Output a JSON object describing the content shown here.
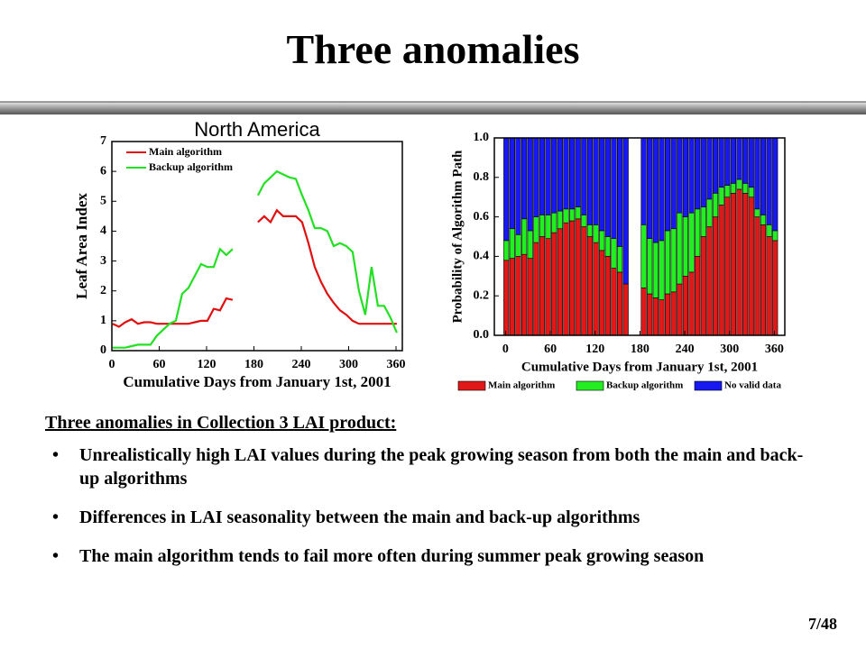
{
  "slide": {
    "title": "Three anomalies",
    "heading": "Three anomalies in Collection 3 LAI product:",
    "bullets": [
      "Unrealistically high LAI values during the peak growing season from both the main and back-up algorithms",
      "Differences in LAI seasonality between the main and back-up algorithms",
      "The main algorithm tends to fail more often during summer peak growing season"
    ],
    "page_number": "7/48"
  },
  "chart_data": [
    {
      "type": "line",
      "title": "North America",
      "xlabel": "Cumulative Days from January 1st, 2001",
      "ylabel": "Leaf Area Index",
      "x": [
        1,
        9,
        17,
        25,
        33,
        41,
        49,
        57,
        65,
        73,
        81,
        89,
        97,
        105,
        113,
        121,
        129,
        137,
        145,
        153,
        161,
        169,
        177,
        185,
        193,
        201,
        209,
        217,
        225,
        233,
        241,
        249,
        257,
        265,
        273,
        281,
        289,
        297,
        305,
        313,
        321,
        329,
        337,
        345,
        353,
        361
      ],
      "series": [
        {
          "name": "Main algorithm",
          "color": "#e01010",
          "values": [
            0.9,
            0.8,
            0.95,
            1.05,
            0.9,
            0.95,
            0.95,
            0.9,
            0.9,
            0.9,
            0.9,
            0.9,
            0.9,
            0.95,
            1.0,
            1.0,
            1.4,
            1.35,
            1.75,
            1.7,
            null,
            null,
            null,
            4.3,
            4.5,
            4.3,
            4.7,
            4.5,
            4.5,
            4.5,
            4.3,
            3.6,
            2.8,
            2.3,
            1.9,
            1.6,
            1.35,
            1.2,
            1.0,
            0.9,
            0.9,
            0.9,
            0.9,
            0.9,
            0.9,
            0.9
          ]
        },
        {
          "name": "Backup algorithm",
          "color": "#22e022",
          "values": [
            0.1,
            0.1,
            0.1,
            0.15,
            0.2,
            0.2,
            0.2,
            0.5,
            0.7,
            0.9,
            1.0,
            1.9,
            2.1,
            2.5,
            2.9,
            2.8,
            2.8,
            3.4,
            3.2,
            3.4,
            null,
            null,
            null,
            5.2,
            5.6,
            5.8,
            6.0,
            5.9,
            5.8,
            5.75,
            5.2,
            4.7,
            4.1,
            4.1,
            4.0,
            3.5,
            3.6,
            3.5,
            3.3,
            2.0,
            1.2,
            2.8,
            1.5,
            1.5,
            1.1,
            0.6
          ]
        }
      ],
      "xlim": [
        0,
        368
      ],
      "xticks": [
        0,
        60,
        120,
        180,
        240,
        300,
        360
      ],
      "ylim": [
        0,
        7
      ],
      "yticks": [
        0,
        1,
        2,
        3,
        4,
        5,
        6,
        7
      ],
      "legend": "upper left"
    },
    {
      "type": "stacked_bar",
      "xlabel": "Cumulative Days from January 1st, 2001",
      "ylabel": "Probability of Algorithm Path",
      "x": [
        1,
        9,
        17,
        25,
        33,
        41,
        49,
        57,
        65,
        73,
        81,
        89,
        97,
        105,
        113,
        121,
        129,
        137,
        145,
        153,
        161,
        169,
        177,
        185,
        193,
        201,
        209,
        217,
        225,
        233,
        241,
        249,
        257,
        265,
        273,
        281,
        289,
        297,
        305,
        313,
        321,
        329,
        337,
        345,
        353,
        361
      ],
      "series": [
        {
          "name": "Main algorithm",
          "color": "#e01818",
          "values": [
            0.38,
            0.39,
            0.4,
            0.41,
            0.39,
            0.47,
            0.5,
            0.49,
            0.52,
            0.54,
            0.57,
            0.58,
            0.59,
            0.55,
            0.5,
            0.47,
            0.43,
            0.4,
            0.34,
            0.32,
            0.26,
            null,
            null,
            0.24,
            0.21,
            0.19,
            0.18,
            0.21,
            0.22,
            0.26,
            0.3,
            0.32,
            0.4,
            0.5,
            0.55,
            0.6,
            0.66,
            0.7,
            0.72,
            0.74,
            0.72,
            0.7,
            0.6,
            0.56,
            0.5,
            0.48
          ]
        },
        {
          "name": "Backup algorithm",
          "color": "#22ee22",
          "values": [
            0.1,
            0.15,
            0.11,
            0.18,
            0.14,
            0.13,
            0.11,
            0.12,
            0.1,
            0.09,
            0.07,
            0.06,
            0.06,
            0.06,
            0.06,
            0.09,
            0.1,
            0.1,
            0.15,
            0.13,
            0,
            null,
            null,
            0.32,
            0.28,
            0.28,
            0.3,
            0.32,
            0.32,
            0.36,
            0.3,
            0.3,
            0.24,
            0.15,
            0.14,
            0.12,
            0.09,
            0.06,
            0.05,
            0.05,
            0.05,
            0.05,
            0.04,
            0.05,
            0.06,
            0.05
          ]
        },
        {
          "name": "No valid data",
          "color": "#1818f0",
          "values": [
            0.52,
            0.46,
            0.49,
            0.41,
            0.47,
            0.4,
            0.39,
            0.39,
            0.38,
            0.37,
            0.36,
            0.36,
            0.35,
            0.39,
            0.44,
            0.44,
            0.47,
            0.5,
            0.51,
            0.55,
            0.74,
            null,
            null,
            0.44,
            0.51,
            0.53,
            0.52,
            0.47,
            0.46,
            0.38,
            0.4,
            0.38,
            0.36,
            0.35,
            0.31,
            0.28,
            0.25,
            0.24,
            0.23,
            0.21,
            0.23,
            0.25,
            0.36,
            0.39,
            0.44,
            0.47
          ]
        }
      ],
      "xlim": [
        -15,
        374
      ],
      "xticks": [
        0,
        60,
        120,
        180,
        240,
        300,
        360
      ],
      "ylim": [
        0,
        1
      ],
      "yticks": [
        {
          "value": 0,
          "label": "0.0"
        },
        0.2,
        0.4,
        0.6,
        0.8,
        {
          "value": 1,
          "label": "1.0"
        }
      ],
      "legend": "bottom"
    }
  ]
}
